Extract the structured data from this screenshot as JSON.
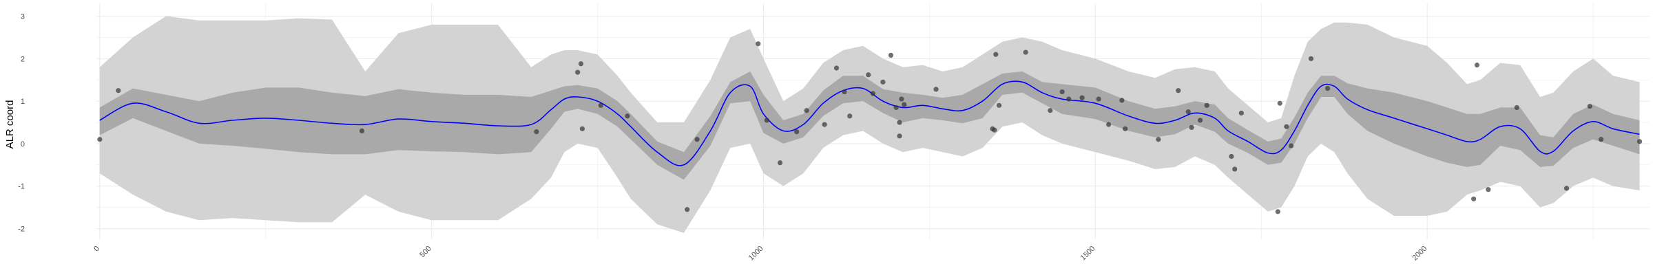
{
  "chart_data": {
    "type": "line",
    "xlabel": "",
    "ylabel": "ALR coord",
    "xlim": [
      -5,
      2335
    ],
    "ylim": [
      -2.25,
      3.3
    ],
    "xticks": [
      0,
      500,
      1000,
      1500,
      2000
    ],
    "yticks": [
      -2,
      -1,
      0,
      1,
      2,
      3
    ],
    "grid": true,
    "legend": "none",
    "colors": {
      "mean_line": "#0000ff",
      "inner_band": "#a9a9a9",
      "outer_band": "#d3d3d3",
      "points": "#333333",
      "grid": "#ebebeb"
    },
    "mean": {
      "x": [
        0,
        50,
        100,
        150,
        200,
        250,
        300,
        350,
        400,
        450,
        500,
        550,
        600,
        650,
        680,
        700,
        720,
        750,
        780,
        800,
        840,
        880,
        920,
        950,
        980,
        1000,
        1030,
        1060,
        1090,
        1120,
        1150,
        1180,
        1210,
        1240,
        1270,
        1300,
        1330,
        1360,
        1390,
        1420,
        1450,
        1500,
        1550,
        1590,
        1620,
        1650,
        1680,
        1700,
        1730,
        1760,
        1780,
        1800,
        1820,
        1840,
        1860,
        1880,
        1910,
        1950,
        2000,
        2030,
        2060,
        2080,
        2110,
        2140,
        2170,
        2190,
        2220,
        2250,
        2280,
        2320
      ],
      "y": [
        0.55,
        0.95,
        0.75,
        0.48,
        0.55,
        0.6,
        0.55,
        0.48,
        0.45,
        0.58,
        0.52,
        0.48,
        0.42,
        0.45,
        0.8,
        1.05,
        1.1,
        1.0,
        0.7,
        0.4,
        -0.2,
        -0.5,
        0.3,
        1.2,
        1.35,
        0.7,
        0.3,
        0.45,
        0.95,
        1.25,
        1.3,
        1.0,
        0.85,
        0.9,
        0.82,
        0.78,
        1.0,
        1.4,
        1.45,
        1.2,
        1.05,
        0.95,
        0.65,
        0.48,
        0.55,
        0.72,
        0.6,
        0.3,
        0.05,
        -0.22,
        -0.15,
        0.3,
        0.9,
        1.35,
        1.35,
        1.05,
        0.8,
        0.6,
        0.35,
        0.2,
        0.05,
        0.1,
        0.4,
        0.35,
        -0.18,
        -0.18,
        0.3,
        0.52,
        0.35,
        0.22
      ]
    },
    "inner_band": {
      "upper": [
        0.85,
        1.3,
        1.15,
        1.0,
        1.2,
        1.32,
        1.32,
        1.2,
        1.12,
        1.28,
        1.2,
        1.15,
        1.15,
        1.1,
        1.25,
        1.35,
        1.38,
        1.3,
        1.0,
        0.7,
        0.05,
        -0.2,
        0.65,
        1.45,
        1.7,
        1.15,
        0.55,
        0.7,
        1.25,
        1.6,
        1.6,
        1.28,
        1.2,
        1.15,
        1.08,
        1.15,
        1.4,
        1.65,
        1.7,
        1.45,
        1.4,
        1.32,
        1.0,
        0.82,
        0.88,
        1.0,
        0.92,
        0.6,
        0.32,
        0.05,
        0.12,
        0.62,
        1.2,
        1.6,
        1.6,
        1.42,
        1.3,
        1.2,
        1.0,
        0.85,
        0.7,
        0.7,
        0.85,
        0.85,
        0.2,
        0.15,
        0.7,
        0.92,
        0.7,
        0.55
      ],
      "lower": [
        0.2,
        0.6,
        0.3,
        0.0,
        -0.05,
        -0.12,
        -0.2,
        -0.25,
        -0.25,
        -0.15,
        -0.18,
        -0.2,
        -0.25,
        -0.2,
        0.35,
        0.75,
        0.82,
        0.7,
        0.4,
        0.1,
        -0.5,
        -0.85,
        -0.05,
        0.95,
        1.0,
        0.25,
        0.0,
        0.15,
        0.65,
        0.95,
        1.0,
        0.72,
        0.5,
        0.6,
        0.55,
        0.48,
        0.6,
        1.15,
        1.2,
        0.95,
        0.7,
        0.58,
        0.3,
        0.15,
        0.22,
        0.45,
        0.28,
        0.0,
        -0.22,
        -0.5,
        -0.45,
        0.0,
        0.6,
        1.1,
        1.1,
        0.7,
        0.3,
        0.0,
        -0.3,
        -0.45,
        -0.55,
        -0.5,
        -0.05,
        -0.15,
        -0.55,
        -0.52,
        -0.1,
        0.1,
        -0.05,
        -0.25
      ]
    },
    "outer_band": {
      "upper": [
        1.8,
        2.5,
        3.0,
        2.9,
        2.9,
        2.9,
        2.95,
        2.92,
        1.7,
        2.6,
        2.8,
        2.8,
        2.8,
        1.8,
        2.1,
        2.2,
        2.2,
        2.1,
        1.6,
        1.2,
        0.5,
        0.5,
        1.5,
        2.5,
        2.7,
        2.0,
        1.0,
        1.3,
        1.9,
        2.2,
        2.3,
        2.0,
        1.8,
        1.85,
        1.7,
        1.8,
        2.1,
        2.4,
        2.5,
        2.4,
        2.2,
        2.0,
        1.7,
        1.55,
        1.75,
        1.8,
        1.7,
        1.3,
        0.9,
        0.5,
        0.6,
        1.6,
        2.4,
        2.7,
        2.85,
        2.85,
        2.8,
        2.5,
        2.3,
        1.9,
        1.4,
        1.5,
        1.9,
        1.85,
        1.1,
        1.2,
        1.7,
        2.0,
        1.6,
        1.45
      ],
      "lower": [
        -0.7,
        -1.2,
        -1.6,
        -1.8,
        -1.75,
        -1.8,
        -1.85,
        -1.85,
        -1.2,
        -1.6,
        -1.8,
        -1.8,
        -1.8,
        -1.3,
        -0.8,
        -0.2,
        0.0,
        -0.1,
        -0.8,
        -1.3,
        -1.9,
        -2.1,
        -1.1,
        -0.1,
        0.0,
        -0.7,
        -1.0,
        -0.7,
        -0.1,
        0.2,
        0.3,
        0.0,
        -0.2,
        -0.1,
        -0.2,
        -0.3,
        -0.1,
        0.4,
        0.5,
        0.2,
        0.0,
        -0.2,
        -0.4,
        -0.6,
        -0.55,
        -0.3,
        -0.5,
        -0.8,
        -1.2,
        -1.6,
        -1.5,
        -1.0,
        -0.3,
        0.0,
        -0.2,
        -0.7,
        -1.3,
        -1.7,
        -1.7,
        -1.6,
        -1.2,
        -1.1,
        -0.9,
        -1.0,
        -1.5,
        -1.4,
        -1.0,
        -0.8,
        -1.0,
        -1.1
      ]
    },
    "points": [
      {
        "x": 0,
        "y": 0.1
      },
      {
        "x": 28,
        "y": 1.25
      },
      {
        "x": 395,
        "y": 0.3
      },
      {
        "x": 658,
        "y": 0.28
      },
      {
        "x": 720,
        "y": 1.68
      },
      {
        "x": 725,
        "y": 1.88
      },
      {
        "x": 727,
        "y": 0.35
      },
      {
        "x": 755,
        "y": 0.9
      },
      {
        "x": 795,
        "y": 0.65
      },
      {
        "x": 885,
        "y": -1.55
      },
      {
        "x": 900,
        "y": 0.1
      },
      {
        "x": 992,
        "y": 2.35
      },
      {
        "x": 1005,
        "y": 0.55
      },
      {
        "x": 1025,
        "y": -0.45
      },
      {
        "x": 1050,
        "y": 0.28
      },
      {
        "x": 1065,
        "y": 0.78
      },
      {
        "x": 1092,
        "y": 0.45
      },
      {
        "x": 1110,
        "y": 1.78
      },
      {
        "x": 1122,
        "y": 1.22
      },
      {
        "x": 1130,
        "y": 0.65
      },
      {
        "x": 1158,
        "y": 1.62
      },
      {
        "x": 1165,
        "y": 1.18
      },
      {
        "x": 1180,
        "y": 1.45
      },
      {
        "x": 1192,
        "y": 2.08
      },
      {
        "x": 1200,
        "y": 0.85
      },
      {
        "x": 1205,
        "y": 0.5
      },
      {
        "x": 1205,
        "y": 0.18
      },
      {
        "x": 1208,
        "y": 1.05
      },
      {
        "x": 1212,
        "y": 0.92
      },
      {
        "x": 1260,
        "y": 1.28
      },
      {
        "x": 1345,
        "y": 0.35
      },
      {
        "x": 1348,
        "y": 0.32
      },
      {
        "x": 1350,
        "y": 2.1
      },
      {
        "x": 1355,
        "y": 0.9
      },
      {
        "x": 1395,
        "y": 2.15
      },
      {
        "x": 1432,
        "y": 0.78
      },
      {
        "x": 1450,
        "y": 1.22
      },
      {
        "x": 1460,
        "y": 1.05
      },
      {
        "x": 1480,
        "y": 1.08
      },
      {
        "x": 1505,
        "y": 1.05
      },
      {
        "x": 1520,
        "y": 0.45
      },
      {
        "x": 1540,
        "y": 1.02
      },
      {
        "x": 1545,
        "y": 0.35
      },
      {
        "x": 1595,
        "y": 0.1
      },
      {
        "x": 1625,
        "y": 1.25
      },
      {
        "x": 1640,
        "y": 0.75
      },
      {
        "x": 1645,
        "y": 0.38
      },
      {
        "x": 1658,
        "y": 0.55
      },
      {
        "x": 1668,
        "y": 0.9
      },
      {
        "x": 1705,
        "y": -0.3
      },
      {
        "x": 1710,
        "y": -0.6
      },
      {
        "x": 1720,
        "y": 0.72
      },
      {
        "x": 1775,
        "y": -1.6
      },
      {
        "x": 1778,
        "y": 0.95
      },
      {
        "x": 1788,
        "y": 0.4
      },
      {
        "x": 1795,
        "y": -0.05
      },
      {
        "x": 1825,
        "y": 2.0
      },
      {
        "x": 1850,
        "y": 1.3
      },
      {
        "x": 2070,
        "y": -1.3
      },
      {
        "x": 2075,
        "y": 1.85
      },
      {
        "x": 2092,
        "y": -1.08
      },
      {
        "x": 2135,
        "y": 0.85
      },
      {
        "x": 2210,
        "y": -1.05
      },
      {
        "x": 2245,
        "y": 0.88
      },
      {
        "x": 2262,
        "y": 0.1
      },
      {
        "x": 2320,
        "y": 0.05
      }
    ]
  }
}
